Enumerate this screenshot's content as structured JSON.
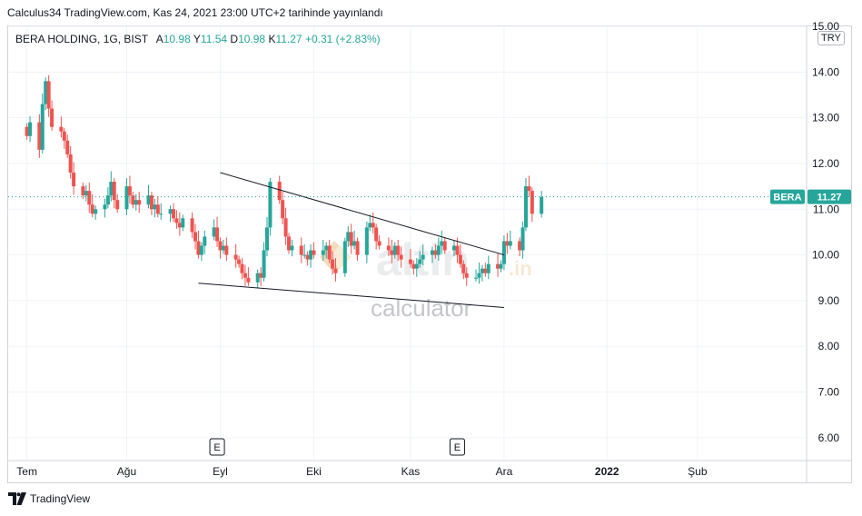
{
  "caption": "Calculus34 TradingView.com, Kas 24, 2021 23:00 UTC+2 tarihinde yayınlandı",
  "legend": {
    "symbol": "BERA HOLDING, 1G, BIST",
    "open_label": "A",
    "open": "10.98",
    "high_label": "Y",
    "high": "11.54",
    "low_label": "D",
    "low": "10.98",
    "close_label": "K",
    "close": "11.27",
    "change": "+0.31 (+2.83%)"
  },
  "currency": "TRY",
  "price_tag": {
    "ticker": "BERA",
    "value": "11.27",
    "color": "#26a69a"
  },
  "watermark": {
    "brand": "altin",
    "suffix": ".in",
    "subtitle": "calculator"
  },
  "footer": {
    "brand": "TradingView"
  },
  "event_markers": [
    {
      "label": "E",
      "date": "2021-08-31"
    },
    {
      "label": "E",
      "date": "2021-11-16"
    }
  ],
  "chart_data": {
    "type": "candlestick",
    "x_range": [
      "2021-06-25",
      "2022-03-08"
    ],
    "ylim": [
      5.5,
      15.0
    ],
    "y_ticks": [
      6,
      7,
      8,
      9,
      10,
      11,
      12,
      13,
      14,
      15
    ],
    "y_tick_labels": [
      "6.00",
      "7.00",
      "8.00",
      "9.00",
      "10.00",
      "11.00",
      "12.00",
      "13.00",
      "14.00",
      "15.00"
    ],
    "x_ticks": [
      {
        "label": "Tem",
        "date": "2021-07-01"
      },
      {
        "label": "Ağu",
        "date": "2021-08-02"
      },
      {
        "label": "Eyl",
        "date": "2021-09-01"
      },
      {
        "label": "Eki",
        "date": "2021-10-01"
      },
      {
        "label": "Kas",
        "date": "2021-11-01"
      },
      {
        "label": "Ara",
        "date": "2021-12-01"
      },
      {
        "label": "2022",
        "date": "2022-01-03"
      },
      {
        "label": "Şub",
        "date": "2022-02-01"
      }
    ],
    "grid": true,
    "up_color": "#26a69a",
    "down_color": "#ef5350",
    "last_price": 11.27,
    "closes": [
      12.6,
      12.9,
      12.3,
      13.3,
      13.8,
      13.2,
      12.8,
      12.7,
      12.5,
      12.2,
      11.8,
      11.5,
      11.3,
      11.4,
      11.1,
      10.9,
      11.0,
      11.1,
      11.3,
      11.6,
      11.2,
      11.0,
      11.5,
      11.3,
      11.1,
      11.2,
      11.1,
      11.3,
      11.0,
      11.1,
      10.9,
      10.9,
      11.0,
      10.8,
      10.7,
      10.6,
      10.8,
      10.5,
      10.3,
      10.0,
      10.2,
      10.4,
      10.6,
      10.3,
      10.1,
      10.2,
      10.0,
      9.9,
      9.8,
      9.6,
      9.5,
      9.4,
      9.6,
      9.5,
      10.1,
      10.6,
      11.6,
      11.2,
      10.8,
      10.4,
      10.1,
      10.2,
      10.0,
      10.0,
      9.9,
      10.1,
      10.0,
      10.1,
      10.2,
      9.9,
      9.7,
      9.6,
      10.3,
      10.5,
      10.2,
      10.3,
      10.0,
      10.6,
      10.7,
      10.6,
      10.3,
      10.2,
      10.1,
      10.0,
      10.2,
      10.0,
      9.9,
      9.8,
      9.7,
      9.8,
      9.9,
      10.0,
      10.1,
      10.0,
      10.2,
      10.3,
      10.1,
      10.2,
      10.0,
      9.8,
      9.6,
      9.5,
      9.5,
      9.6,
      9.7,
      9.6,
      9.8,
      9.7,
      9.8,
      10.3,
      10.2,
      10.3,
      10.1,
      10.6,
      11.5,
      11.4,
      10.9,
      11.27
    ],
    "drawings": [
      {
        "name": "upper-trendline",
        "from": {
          "date": "2021-09-01",
          "price": 11.8
        },
        "to": {
          "date": "2021-12-01",
          "price": 10.0
        }
      },
      {
        "name": "lower-trendline",
        "from": {
          "date": "2021-08-25",
          "price": 9.38
        },
        "to": {
          "date": "2021-12-01",
          "price": 8.85
        }
      }
    ]
  }
}
